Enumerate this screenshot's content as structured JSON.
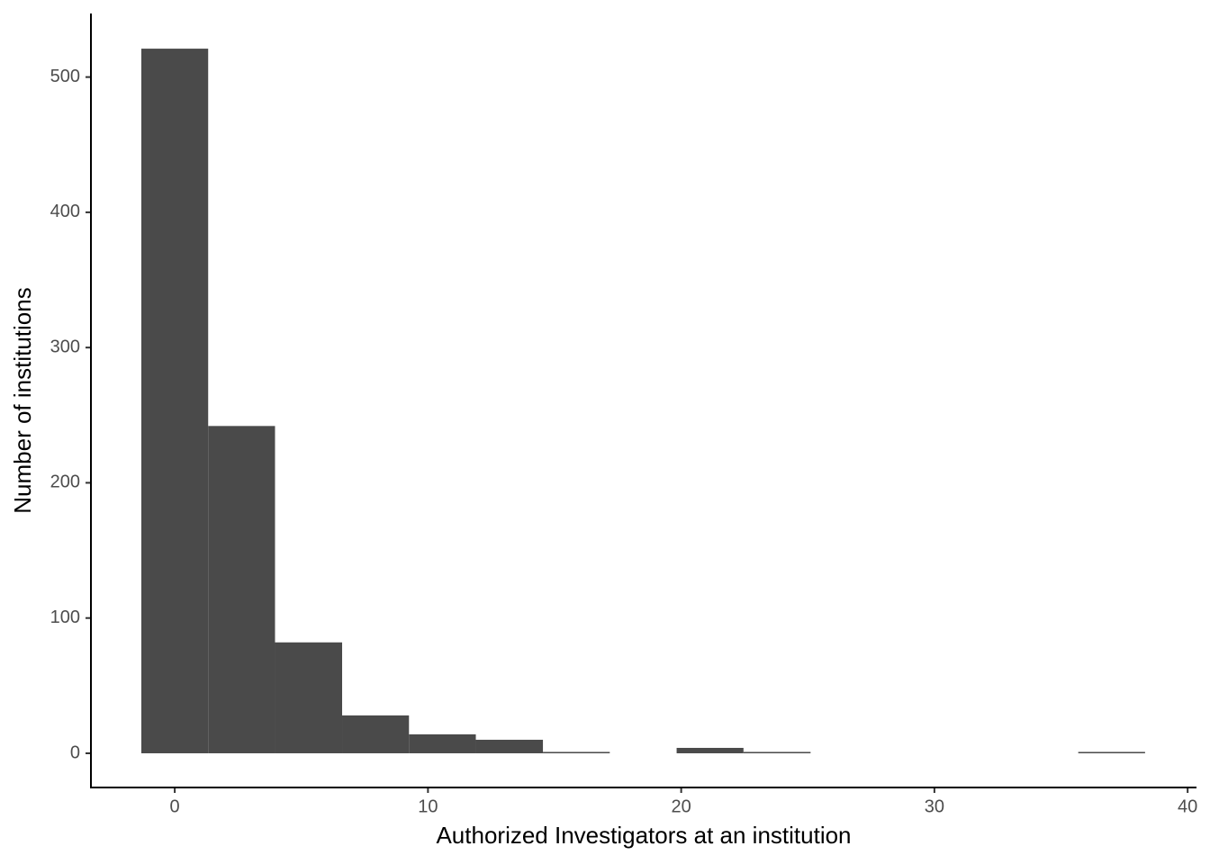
{
  "chart_data": {
    "type": "histogram",
    "x_label": "Authorized Investigators at an institution",
    "y_label": "Number of institutions",
    "bins": [
      -1.32,
      1.32,
      3.96,
      6.61,
      9.25,
      11.89,
      14.54,
      17.18,
      19.82,
      22.46,
      25.11,
      27.75,
      30.39,
      33.04,
      35.68,
      38.32
    ],
    "counts": [
      521,
      242,
      82,
      28,
      14,
      10,
      1,
      0,
      4,
      1,
      0,
      0,
      0,
      0,
      1
    ],
    "color": "#4a4a4a",
    "xlim": [
      -3.31,
      40.35
    ],
    "xticks": [
      0,
      10,
      20,
      30,
      40
    ],
    "ylim": [
      -25.3,
      547
    ],
    "yticks": [
      0,
      100,
      200,
      300,
      400,
      500
    ]
  }
}
